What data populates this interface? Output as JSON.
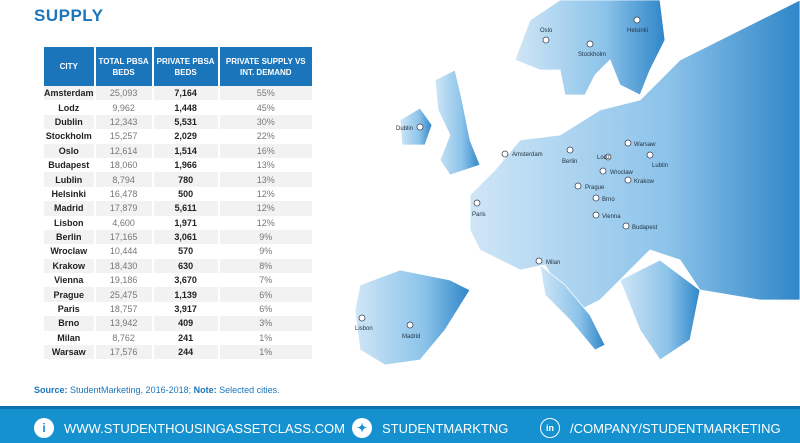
{
  "title": "SUPPLY",
  "table": {
    "headers": [
      "CITY",
      "TOTAL PBSA BEDS",
      "PRIVATE PBSA BEDS",
      "PRIVATE SUPPLY VS INT. DEMAND"
    ],
    "rows": [
      [
        "Amsterdam",
        "25,093",
        "7,164",
        "55%"
      ],
      [
        "Lodz",
        "9,962",
        "1,448",
        "45%"
      ],
      [
        "Dublin",
        "12,343",
        "5,531",
        "30%"
      ],
      [
        "Stockholm",
        "15,257",
        "2,029",
        "22%"
      ],
      [
        "Oslo",
        "12,614",
        "1,514",
        "16%"
      ],
      [
        "Budapest",
        "18,060",
        "1,966",
        "13%"
      ],
      [
        "Lublin",
        "8,794",
        "780",
        "13%"
      ],
      [
        "Helsinki",
        "16,478",
        "500",
        "12%"
      ],
      [
        "Madrid",
        "17,879",
        "5,611",
        "12%"
      ],
      [
        "Lisbon",
        "4,600",
        "1,971",
        "12%"
      ],
      [
        "Berlin",
        "17,165",
        "3,061",
        "9%"
      ],
      [
        "Wroclaw",
        "10,444",
        "570",
        "9%"
      ],
      [
        "Krakow",
        "18,430",
        "630",
        "8%"
      ],
      [
        "Vienna",
        "19,186",
        "3,670",
        "7%"
      ],
      [
        "Prague",
        "25,475",
        "1,139",
        "6%"
      ],
      [
        "Paris",
        "18,757",
        "3,917",
        "6%"
      ],
      [
        "Brno",
        "13,942",
        "409",
        "3%"
      ],
      [
        "Milan",
        "8,762",
        "241",
        "1%"
      ],
      [
        "Warsaw",
        "17,576",
        "244",
        "1%"
      ]
    ]
  },
  "source": {
    "label": "Source:",
    "text": " StudentMarketing, 2016-2018; ",
    "note_label": "Note:",
    "note": " Selected cities."
  },
  "map": {
    "cities": [
      "Oslo",
      "Helsinki",
      "Stockholm",
      "Dublin",
      "Amsterdam",
      "Berlin",
      "Lodz",
      "Warsaw",
      "Lublin",
      "Wroclaw",
      "Krakow",
      "Prague",
      "Brno",
      "Paris",
      "Vienna",
      "Budapest",
      "Milan",
      "Lisbon",
      "Madrid"
    ]
  },
  "footer": {
    "website": "WWW.STUDENTHOUSINGASSETCLASS.COM",
    "twitter": "STUDENTMARKTNG",
    "linkedin": "/COMPANY/STUDENTMARKETING",
    "info_icon": "i",
    "linkedin_icon": "in"
  },
  "colors": {
    "accent": "#1b75bb",
    "footer": "#1591cf"
  }
}
